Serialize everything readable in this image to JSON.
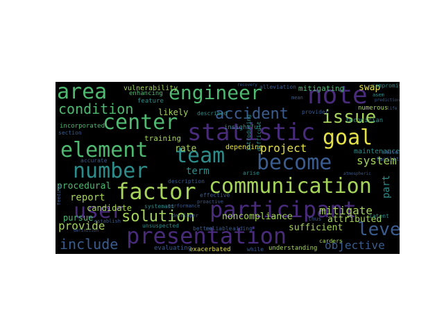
{
  "palette": {
    "purple": "#482b7a",
    "blue": "#3a5c8f",
    "teal": "#2e8c8a",
    "green": "#4fb972",
    "lime": "#a6d45a",
    "yellow": "#e4e04a",
    "gray": "#8a8f92"
  },
  "words": [
    {
      "id": "area",
      "text": "area",
      "color": "green"
    },
    {
      "id": "engineer",
      "text": "engineer",
      "color": "green"
    },
    {
      "id": "note",
      "text": "note",
      "color": "purple"
    },
    {
      "id": "issue",
      "text": "issue",
      "color": "lime"
    },
    {
      "id": "condition",
      "text": "condition",
      "color": "green"
    },
    {
      "id": "accident",
      "text": "accident",
      "color": "blue"
    },
    {
      "id": "center",
      "text": "center",
      "color": "green"
    },
    {
      "id": "statistic",
      "text": "statistic",
      "color": "purple"
    },
    {
      "id": "goal",
      "text": "goal",
      "color": "yellow"
    },
    {
      "id": "element",
      "text": "element",
      "color": "green"
    },
    {
      "id": "team",
      "text": "team",
      "color": "teal"
    },
    {
      "id": "become",
      "text": "become",
      "color": "blue"
    },
    {
      "id": "number",
      "text": "number",
      "color": "teal"
    },
    {
      "id": "communication",
      "text": "communication",
      "color": "lime"
    },
    {
      "id": "factor",
      "text": "factor",
      "color": "lime"
    },
    {
      "id": "user",
      "text": "user",
      "color": "purple"
    },
    {
      "id": "participant",
      "text": "participant",
      "color": "purple"
    },
    {
      "id": "solution",
      "text": "solution",
      "color": "lime"
    },
    {
      "id": "presentation",
      "text": "presentation",
      "color": "purple"
    },
    {
      "id": "level",
      "text": "level",
      "color": "blue"
    },
    {
      "id": "include",
      "text": "include",
      "color": "blue"
    },
    {
      "id": "provide",
      "text": "provide",
      "color": "lime"
    },
    {
      "id": "objective",
      "text": "objective",
      "color": "blue"
    },
    {
      "id": "project",
      "text": "project",
      "color": "yellow"
    },
    {
      "id": "system",
      "text": "system",
      "color": "lime"
    },
    {
      "id": "report",
      "text": "report",
      "color": "lime"
    },
    {
      "id": "procedural",
      "text": "procedural",
      "color": "green"
    },
    {
      "id": "rate",
      "text": "rate",
      "color": "lime"
    },
    {
      "id": "term",
      "text": "term",
      "color": "teal"
    },
    {
      "id": "candidate",
      "text": "candidate",
      "color": "lime"
    },
    {
      "id": "pursue",
      "text": "pursue",
      "color": "green"
    },
    {
      "id": "mitigate",
      "text": "mitigate",
      "color": "lime"
    },
    {
      "id": "part",
      "text": "part",
      "color": "teal"
    },
    {
      "id": "noncompliance",
      "text": "noncompliance",
      "color": "lime"
    },
    {
      "id": "attributed",
      "text": "attributed",
      "color": "lime"
    },
    {
      "id": "sufficient",
      "text": "sufficient",
      "color": "lime"
    },
    {
      "id": "likely",
      "text": "likely",
      "color": "lime"
    },
    {
      "id": "training",
      "text": "training",
      "color": "lime"
    },
    {
      "id": "mitigating",
      "text": "mitigating",
      "color": "green"
    },
    {
      "id": "swap",
      "text": "swap",
      "color": "yellow"
    },
    {
      "id": "vulnerability",
      "text": "vulnerability",
      "color": "lime"
    },
    {
      "id": "depending",
      "text": "depending",
      "color": "yellow"
    },
    {
      "id": "maintenance",
      "text": "maintenance",
      "color": "teal"
    },
    {
      "id": "numerous",
      "text": "numerous",
      "color": "lime"
    },
    {
      "id": "technician",
      "text": "technician",
      "color": "teal"
    },
    {
      "id": "insightful",
      "text": "insightful",
      "color": "teal"
    },
    {
      "id": "feature",
      "text": "feature",
      "color": "teal"
    },
    {
      "id": "enhancing",
      "text": "enhancing",
      "color": "green"
    },
    {
      "id": "incorporated",
      "text": "incorporated",
      "color": "green"
    },
    {
      "id": "section",
      "text": "section",
      "color": "blue"
    },
    {
      "id": "described",
      "text": "described",
      "color": "teal"
    },
    {
      "id": "provider",
      "text": "provider",
      "color": "blue"
    },
    {
      "id": "exacerbated",
      "text": "exacerbated",
      "color": "yellow"
    },
    {
      "id": "understanding",
      "text": "understanding",
      "color": "lime"
    },
    {
      "id": "evaluating",
      "text": "evaluating",
      "color": "blue"
    },
    {
      "id": "unsuspected",
      "text": "unsuspected",
      "color": "teal"
    },
    {
      "id": "better",
      "text": "better",
      "color": "blue"
    },
    {
      "id": "reliable",
      "text": "reliable",
      "color": "blue"
    },
    {
      "id": "aiding",
      "text": "aiding",
      "color": "blue"
    },
    {
      "id": "thus",
      "text": "thus",
      "color": "blue"
    },
    {
      "id": "carders",
      "text": "carders",
      "color": "lime"
    },
    {
      "id": "latent",
      "text": "latent",
      "color": "teal"
    },
    {
      "id": "arise",
      "text": "arise",
      "color": "teal"
    },
    {
      "id": "accurate",
      "text": "accurate",
      "color": "blue"
    },
    {
      "id": "compromise",
      "text": "compromise",
      "color": "teal"
    },
    {
      "id": "share",
      "text": "share",
      "color": "blue"
    },
    {
      "id": "facilitate",
      "text": "facilitate",
      "color": "blue"
    },
    {
      "id": "introducing",
      "text": "introducing",
      "color": "teal"
    },
    {
      "id": "difficult",
      "text": "difficult",
      "color": "teal"
    },
    {
      "id": "alleviation",
      "text": "alleviation",
      "color": "blue"
    },
    {
      "id": "systemati",
      "text": "systemati",
      "color": "teal"
    },
    {
      "id": "performance",
      "text": "performance",
      "color": "blue"
    },
    {
      "id": "description",
      "text": "description",
      "color": "blue"
    },
    {
      "id": "establish",
      "text": "establish",
      "color": "blue"
    },
    {
      "id": "effective",
      "text": "effective",
      "color": "blue"
    },
    {
      "id": "proactive",
      "text": "proactive",
      "color": "blue"
    },
    {
      "id": "feeding",
      "text": "feeding",
      "color": "blue"
    },
    {
      "id": "asem",
      "text": "asem",
      "color": "teal"
    },
    {
      "id": "prediction",
      "text": "prediction",
      "color": "blue"
    },
    {
      "id": "mean",
      "text": "mean",
      "color": "blue"
    },
    {
      "id": "developer",
      "text": "developer",
      "color": "blue"
    },
    {
      "id": "definition",
      "text": "definition",
      "color": "blue"
    },
    {
      "id": "atmospheric",
      "text": "atmospheric",
      "color": "blue"
    },
    {
      "id": "recovery",
      "text": "recovery",
      "color": "blue"
    },
    {
      "id": "life",
      "text": "life",
      "color": "blue"
    },
    {
      "id": "while",
      "text": "while",
      "color": "blue"
    }
  ]
}
